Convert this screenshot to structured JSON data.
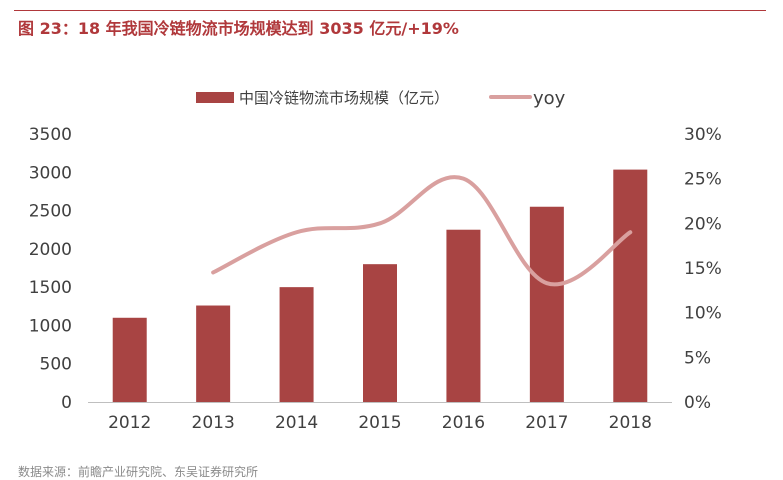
{
  "figure": {
    "title": "图 23：18 年我国冷链物流市场规模达到 3035 亿元/+19%",
    "source": "数据来源：前瞻产业研究院、东吴证券研究所"
  },
  "chart_data": {
    "type": "bar",
    "categories": [
      "2012",
      "2013",
      "2014",
      "2015",
      "2016",
      "2017",
      "2018"
    ],
    "series": [
      {
        "name": "中国冷链物流市场规模（亿元）",
        "type": "bar",
        "axis": "left",
        "color": "#a84443",
        "values": [
          1100,
          1260,
          1500,
          1800,
          2250,
          2550,
          3035
        ]
      },
      {
        "name": "yoy",
        "type": "line",
        "axis": "right",
        "color": "#d9a09f",
        "values": [
          null,
          0.145,
          0.19,
          0.2,
          0.25,
          0.133,
          0.19
        ]
      }
    ],
    "y_left": {
      "ticks": [
        "3500",
        "3000",
        "2500",
        "2000",
        "1500",
        "1000",
        "500",
        "0"
      ],
      "ylim": [
        0,
        3500
      ]
    },
    "y_right": {
      "ticks": [
        "30%",
        "25%",
        "20%",
        "15%",
        "10%",
        "5%",
        "0%"
      ],
      "ylim": [
        0,
        0.3
      ]
    },
    "legend": {
      "placement": "top-center"
    },
    "grid": false
  }
}
